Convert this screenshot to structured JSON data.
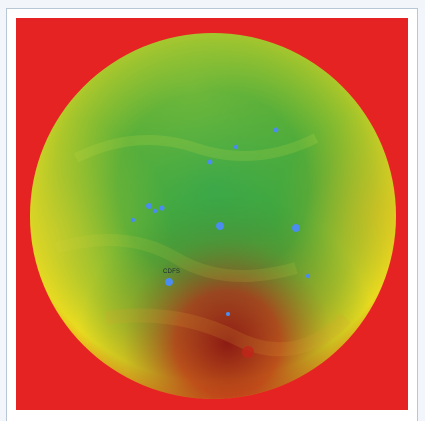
{
  "image": {
    "field_label": "CDFS",
    "colors": {
      "background": "#e52323",
      "sphere_center": "#2aa24a",
      "sphere_rim": "#f2e41a",
      "south_glow": "#8b1212",
      "points": "#4a8cf0"
    },
    "icons": [
      "sky-sphere",
      "field-marker"
    ]
  }
}
